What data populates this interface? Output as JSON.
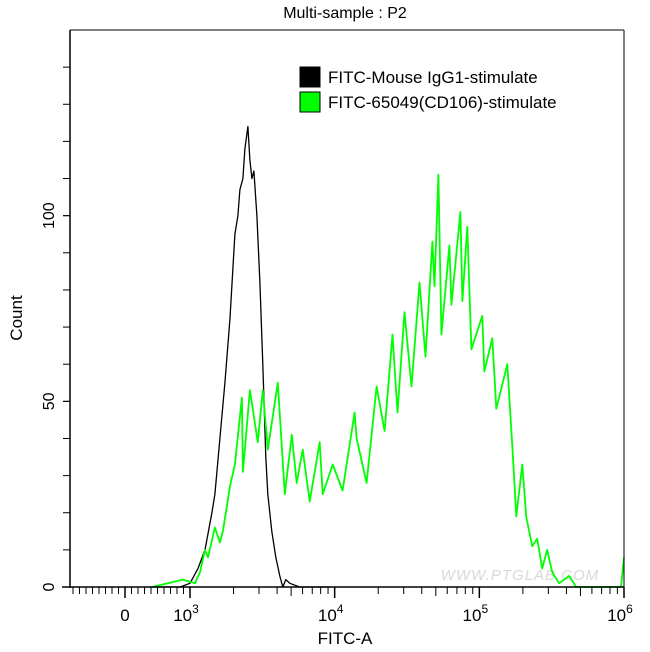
{
  "chart_data": {
    "type": "line",
    "title": "Multi-sample : P2",
    "xlabel": "FITC-A",
    "ylabel": "Count",
    "x_scale": "biexponential (linear near 0, log10 above 10^3)",
    "xlim": [
      -850,
      1000000
    ],
    "ylim": [
      0,
      150
    ],
    "grid": false,
    "legend_position": "top-right",
    "y_ticks": [
      {
        "value": 0,
        "label": "0"
      },
      {
        "value": 50,
        "label": "50"
      },
      {
        "value": 100,
        "label": "100"
      }
    ],
    "y_minor_step": 10,
    "x_ticks": [
      {
        "value": 0,
        "base": "0",
        "exp": ""
      },
      {
        "value": 1000,
        "base": "10",
        "exp": "3"
      },
      {
        "value": 10000,
        "base": "10",
        "exp": "4"
      },
      {
        "value": 100000,
        "base": "10",
        "exp": "5"
      },
      {
        "value": 1000000,
        "base": "10",
        "exp": "6"
      }
    ],
    "watermark": "WWW.PTGLAB.COM",
    "series": [
      {
        "name": "FITC-Mouse IgG1-stimulate",
        "color": "#000000",
        "points": [
          [
            385,
            0
          ],
          [
            846,
            0
          ],
          [
            1000,
            1
          ],
          [
            1135,
            5
          ],
          [
            1269,
            10
          ],
          [
            1418,
            20
          ],
          [
            1487,
            25
          ],
          [
            1610,
            40
          ],
          [
            1743,
            55
          ],
          [
            1888,
            72
          ],
          [
            2043,
            95
          ],
          [
            2143,
            100
          ],
          [
            2212,
            107
          ],
          [
            2320,
            110
          ],
          [
            2395,
            118
          ],
          [
            2512,
            124
          ],
          [
            2593,
            115
          ],
          [
            2677,
            110
          ],
          [
            2763,
            112
          ],
          [
            2898,
            100
          ],
          [
            3040,
            82
          ],
          [
            3187,
            60
          ],
          [
            3343,
            35
          ],
          [
            3451,
            25
          ],
          [
            3678,
            15
          ],
          [
            3919,
            8
          ],
          [
            4175,
            3
          ],
          [
            4378,
            0
          ],
          [
            4593,
            2
          ],
          [
            4894,
            1
          ],
          [
            5736,
            0
          ],
          [
            9237,
            0
          ]
        ]
      },
      {
        "name": "FITC-65049(CD106)-stimulate",
        "color": "#00ff00",
        "points": [
          [
            415,
            0
          ],
          [
            892,
            2
          ],
          [
            1083,
            1
          ],
          [
            1172,
            4
          ],
          [
            1269,
            10
          ],
          [
            1331,
            8
          ],
          [
            1487,
            16
          ],
          [
            1610,
            12
          ],
          [
            1689,
            15
          ],
          [
            1888,
            27
          ],
          [
            2043,
            33
          ],
          [
            2283,
            51
          ],
          [
            2320,
            31
          ],
          [
            2593,
            53
          ],
          [
            2944,
            39
          ],
          [
            3187,
            53
          ],
          [
            3451,
            37
          ],
          [
            4046,
            55
          ],
          [
            4521,
            25
          ],
          [
            5051,
            41
          ],
          [
            5468,
            28
          ],
          [
            6015,
            37
          ],
          [
            6723,
            23
          ],
          [
            7882,
            39
          ],
          [
            8264,
            25
          ],
          [
            9687,
            33
          ],
          [
            11354,
            26
          ],
          [
            13737,
            47
          ],
          [
            14183,
            40
          ],
          [
            16622,
            28
          ],
          [
            19488,
            54
          ],
          [
            22125,
            42
          ],
          [
            25119,
            68
          ],
          [
            27203,
            47
          ],
          [
            30395,
            74
          ],
          [
            33963,
            54
          ],
          [
            38574,
            82
          ],
          [
            42426,
            62
          ],
          [
            47415,
            93
          ],
          [
            48950,
            81
          ],
          [
            52159,
            111
          ],
          [
            54682,
            68
          ],
          [
            62124,
            92
          ],
          [
            64128,
            76
          ],
          [
            73961,
            101
          ],
          [
            76344,
            77
          ],
          [
            82635,
            97
          ],
          [
            88075,
            64
          ],
          [
            104880,
            73
          ],
          [
            108280,
            58
          ],
          [
            122900,
            67
          ],
          [
            131000,
            48
          ],
          [
            156030,
            60
          ],
          [
            168980,
            38
          ],
          [
            180000,
            19
          ],
          [
            198000,
            33
          ],
          [
            211000,
            19
          ],
          [
            232000,
            11
          ],
          [
            251190,
            13
          ],
          [
            272000,
            5
          ],
          [
            294400,
            10
          ],
          [
            318700,
            4
          ],
          [
            356200,
            1
          ],
          [
            417500,
            3
          ],
          [
            466600,
            0
          ],
          [
            641300,
            0
          ],
          [
            953500,
            0
          ],
          [
            1000000,
            8
          ]
        ]
      }
    ]
  }
}
